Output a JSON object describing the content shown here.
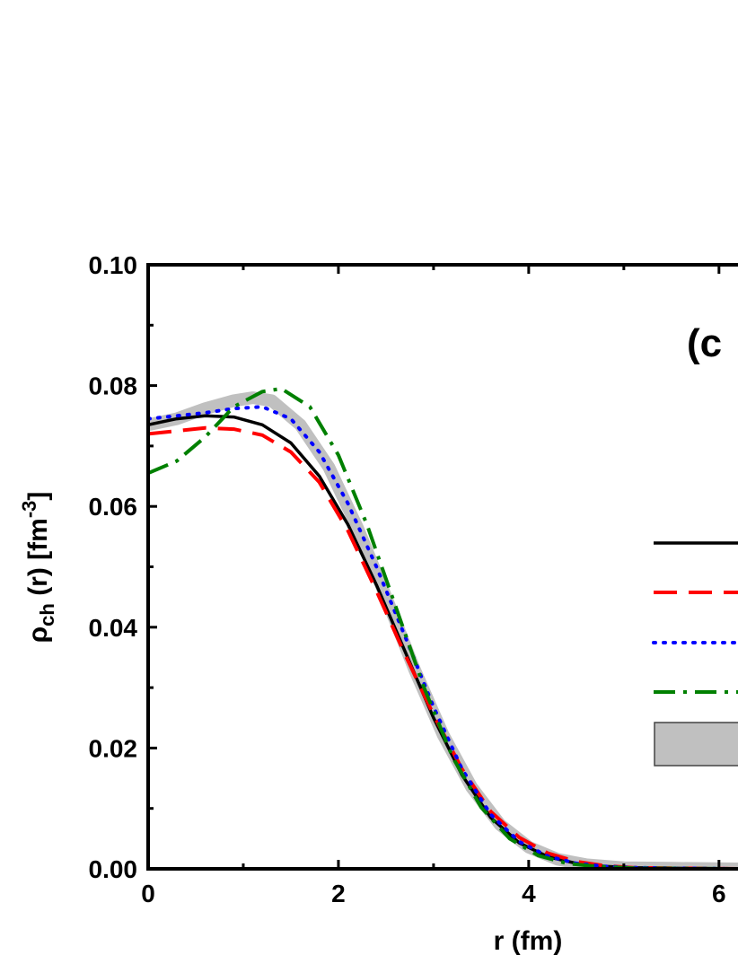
{
  "chart_data": {
    "type": "line",
    "xlabel": "r (fm)",
    "ylabel": {
      "symbol": "ρ",
      "subscript": "ch",
      "rest": " (r)  [fm",
      "superscript": "-3",
      "close": "]"
    },
    "panel_label": "(c",
    "xlim": [
      0,
      6.2
    ],
    "ylim": [
      0,
      0.1
    ],
    "x_ticks": [
      0,
      2,
      4,
      6
    ],
    "x_tick_labels": [
      "0",
      "2",
      "4",
      "6"
    ],
    "y_ticks": [
      0,
      0.02,
      0.04,
      0.06,
      0.08,
      0.1
    ],
    "y_tick_labels": [
      "0.00",
      "0.02",
      "0.04",
      "0.06",
      "0.08",
      "0.10"
    ],
    "grid": false,
    "legend": "right",
    "series": [
      {
        "style": "solid",
        "color": "#000000",
        "points": [
          [
            0,
            0.0735
          ],
          [
            0.3,
            0.0745
          ],
          [
            0.6,
            0.075
          ],
          [
            0.9,
            0.0748
          ],
          [
            1.2,
            0.0735
          ],
          [
            1.5,
            0.0705
          ],
          [
            1.8,
            0.065
          ],
          [
            2.1,
            0.057
          ],
          [
            2.4,
            0.047
          ],
          [
            2.7,
            0.036
          ],
          [
            3.0,
            0.025
          ],
          [
            3.3,
            0.0155
          ],
          [
            3.6,
            0.0085
          ],
          [
            3.9,
            0.0043
          ],
          [
            4.2,
            0.002
          ],
          [
            4.5,
            0.0009
          ],
          [
            4.8,
            0.0004
          ],
          [
            5.1,
            0.0002
          ],
          [
            5.5,
            0.0001
          ],
          [
            6.2,
            0.0
          ]
        ]
      },
      {
        "style": "dashed",
        "color": "#ff0000",
        "points": [
          [
            0,
            0.072
          ],
          [
            0.3,
            0.0725
          ],
          [
            0.6,
            0.073
          ],
          [
            0.9,
            0.0728
          ],
          [
            1.2,
            0.0718
          ],
          [
            1.5,
            0.069
          ],
          [
            1.8,
            0.064
          ],
          [
            2.1,
            0.056
          ],
          [
            2.4,
            0.046
          ],
          [
            2.7,
            0.0355
          ],
          [
            3.0,
            0.0255
          ],
          [
            3.3,
            0.0165
          ],
          [
            3.6,
            0.0095
          ],
          [
            3.9,
            0.0052
          ],
          [
            4.2,
            0.0026
          ],
          [
            4.5,
            0.0012
          ],
          [
            4.8,
            0.0005
          ],
          [
            5.1,
            0.0002
          ],
          [
            5.5,
            0.0001
          ],
          [
            6.2,
            0.0
          ]
        ]
      },
      {
        "style": "dotted",
        "color": "#0000ff",
        "points": [
          [
            0,
            0.0745
          ],
          [
            0.3,
            0.075
          ],
          [
            0.6,
            0.0755
          ],
          [
            0.9,
            0.0762
          ],
          [
            1.2,
            0.0765
          ],
          [
            1.5,
            0.0745
          ],
          [
            1.8,
            0.069
          ],
          [
            2.1,
            0.0605
          ],
          [
            2.4,
            0.05
          ],
          [
            2.7,
            0.0385
          ],
          [
            3.0,
            0.0268
          ],
          [
            3.3,
            0.0165
          ],
          [
            3.6,
            0.009
          ],
          [
            3.9,
            0.0045
          ],
          [
            4.2,
            0.0021
          ],
          [
            4.5,
            0.0009
          ],
          [
            4.8,
            0.0004
          ],
          [
            5.1,
            0.0002
          ],
          [
            5.5,
            0.0001
          ],
          [
            6.2,
            0.0
          ]
        ]
      },
      {
        "style": "dash-dot",
        "color": "#008000",
        "points": [
          [
            0,
            0.0655
          ],
          [
            0.3,
            0.0675
          ],
          [
            0.6,
            0.0715
          ],
          [
            0.9,
            0.0765
          ],
          [
            1.2,
            0.079
          ],
          [
            1.4,
            0.0795
          ],
          [
            1.7,
            0.0765
          ],
          [
            2.0,
            0.0685
          ],
          [
            2.3,
            0.057
          ],
          [
            2.6,
            0.0435
          ],
          [
            2.9,
            0.03
          ],
          [
            3.2,
            0.0185
          ],
          [
            3.5,
            0.0102
          ],
          [
            3.8,
            0.005
          ],
          [
            4.1,
            0.0022
          ],
          [
            4.4,
            0.0009
          ],
          [
            4.7,
            0.0004
          ],
          [
            5.1,
            0.0001
          ],
          [
            6.2,
            0.0
          ]
        ]
      },
      {
        "style": "band",
        "color": "#c0c0c0",
        "points": [
          [
            0,
            0.0735
          ],
          [
            0.3,
            0.0745
          ],
          [
            0.6,
            0.0762
          ],
          [
            0.9,
            0.0775
          ],
          [
            1.1,
            0.078
          ],
          [
            1.3,
            0.0775
          ],
          [
            1.6,
            0.0735
          ],
          [
            1.9,
            0.0665
          ],
          [
            2.2,
            0.0565
          ],
          [
            2.5,
            0.045
          ],
          [
            2.8,
            0.033
          ],
          [
            3.1,
            0.0222
          ],
          [
            3.4,
            0.0135
          ],
          [
            3.7,
            0.0073
          ],
          [
            4.0,
            0.0036
          ],
          [
            4.3,
            0.0016
          ],
          [
            4.6,
            0.0007
          ],
          [
            5.0,
            0.0002
          ],
          [
            5.5,
            0.0001
          ],
          [
            6.2,
            0.0
          ]
        ]
      }
    ]
  }
}
